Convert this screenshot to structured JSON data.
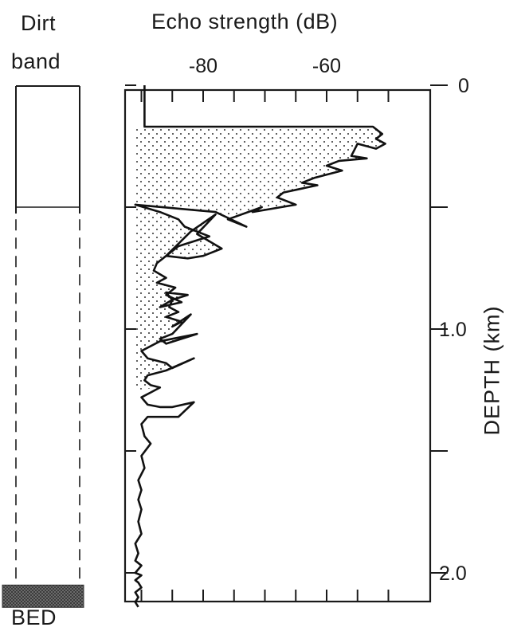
{
  "dirt_panel": {
    "title_line1": "Dirt",
    "title_line2": "band",
    "bed_label": "BED",
    "dirt_band_depth_km": 0.5,
    "solid_until_km": 0.5,
    "dashed_from_km": 0.55,
    "bed_depth_km": 2.05
  },
  "chart_data": {
    "type": "area",
    "title": "Echo strength (dB)",
    "ylabel": "DEPTH (km)",
    "xlim": [
      -93,
      -50
    ],
    "ylim": [
      2.1,
      0
    ],
    "x_ticks": [
      -90,
      -85,
      -80,
      -75,
      -70,
      -65,
      -60,
      -55,
      -50
    ],
    "x_tick_labels": [
      {
        "value": -80,
        "label": "-80"
      },
      {
        "value": -60,
        "label": "-60"
      }
    ],
    "y_ticks": [
      0,
      0.5,
      1.0,
      1.5,
      2.0
    ],
    "y_tick_labels": [
      {
        "value": 0,
        "label": "0"
      },
      {
        "value": 1.0,
        "label": "1.0"
      },
      {
        "value": 2.0,
        "label": "2.0"
      }
    ],
    "shading": "stippled area between curve and baseline, depth 0.17-1.25 km",
    "shade_baseline_db": -91,
    "shade_depth_range_km": [
      0.17,
      1.25
    ],
    "series": [
      {
        "x": [
          -89.5,
          -89.5,
          -52.5,
          -51.0,
          -52.0,
          -50.5,
          -52.0,
          -55.0,
          -56.0,
          -53.5,
          -58.0,
          -60.0,
          -57.5,
          -62.0,
          -64.0,
          -61.5,
          -67.0,
          -68.0,
          -65.0,
          -72.0,
          -70.5,
          -76.0,
          -73.0,
          -78.0,
          -91.0,
          -87.0,
          -84.0,
          -83.0,
          -79.0,
          -84.0,
          -86.0,
          -82.5,
          -80.0,
          -77.0,
          -81.0,
          -78.0,
          -82.0,
          -86.0,
          -87.5,
          -88.0,
          -86.0,
          -87.5,
          -84.5,
          -86.0,
          -83.5,
          -87.0,
          -85.0,
          -82.5,
          -86.0,
          -85.0,
          -85.5,
          -84.0,
          -86.0,
          -83.5,
          -85.0,
          -82.0,
          -85.0,
          -87.0,
          -86.0,
          -81.0,
          -87.0,
          -90.0,
          -89.0,
          -86.0,
          -85.0,
          -81.5,
          -86.0,
          -89.0,
          -89.5,
          -88.5,
          -87.0,
          -88.5,
          -90.0,
          -89.0,
          -87.0,
          -85.0,
          -81.5,
          -84.0,
          -89.0,
          -90.0,
          -89.5,
          -88.5,
          -90.0,
          -89.5,
          -90.5,
          -90.0,
          -90.5,
          -90.0,
          -90.5,
          -90.0,
          -91.0,
          -90.5,
          -91.0,
          -90.0,
          -91.0,
          -90.0,
          -91.0,
          -90.5,
          -90.0,
          -91.0,
          -90.5,
          -91.0,
          -90.5
        ],
        "y": [
          0.0,
          0.17,
          0.17,
          0.2,
          0.22,
          0.24,
          0.26,
          0.24,
          0.29,
          0.3,
          0.31,
          0.33,
          0.35,
          0.38,
          0.4,
          0.41,
          0.44,
          0.46,
          0.49,
          0.52,
          0.5,
          0.55,
          0.58,
          0.52,
          0.49,
          0.52,
          0.55,
          0.58,
          0.62,
          0.66,
          0.7,
          0.71,
          0.7,
          0.67,
          0.61,
          0.53,
          0.6,
          0.7,
          0.73,
          0.76,
          0.79,
          0.81,
          0.83,
          0.86,
          0.89,
          0.91,
          0.88,
          0.86,
          0.85,
          0.88,
          0.91,
          0.93,
          0.95,
          0.97,
          0.99,
          0.94,
          1.02,
          1.04,
          1.06,
          1.02,
          1.05,
          1.09,
          1.12,
          1.14,
          1.16,
          1.12,
          1.17,
          1.19,
          1.21,
          1.23,
          1.24,
          1.26,
          1.28,
          1.31,
          1.32,
          1.32,
          1.3,
          1.36,
          1.36,
          1.39,
          1.44,
          1.47,
          1.52,
          1.57,
          1.62,
          1.66,
          1.7,
          1.74,
          1.79,
          1.84,
          1.88,
          1.92,
          1.95,
          1.97,
          2.0,
          2.01,
          2.03,
          2.04,
          2.06,
          2.08,
          2.1,
          2.12,
          2.14
        ]
      }
    ]
  }
}
